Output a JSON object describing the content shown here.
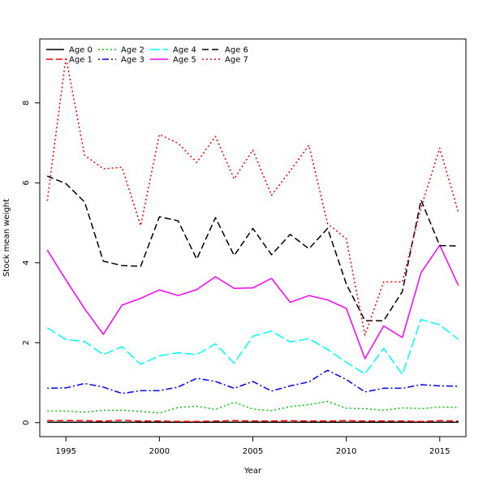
{
  "chart_data": {
    "type": "line",
    "title": "",
    "xlabel": "Year",
    "ylabel": "Stock mean weight",
    "xlim": [
      1993.6,
      2016.4
    ],
    "ylim": [
      -0.35,
      9.6
    ],
    "xticks": [
      1995,
      2000,
      2005,
      2010,
      2015
    ],
    "yticks": [
      0,
      2,
      4,
      6,
      8
    ],
    "legend_position": "top-left",
    "x": [
      1994,
      1995,
      1996,
      1997,
      1998,
      1999,
      2000,
      2001,
      2002,
      2003,
      2004,
      2005,
      2006,
      2007,
      2008,
      2009,
      2010,
      2011,
      2012,
      2013,
      2014,
      2015,
      2016
    ],
    "series": [
      {
        "name": "Age 0",
        "color": "#000000",
        "dash": "solid",
        "values": [
          0.01,
          0.01,
          0.01,
          0.01,
          0.01,
          0.01,
          0.01,
          0.01,
          0.01,
          0.01,
          0.01,
          0.01,
          0.01,
          0.01,
          0.01,
          0.01,
          0.01,
          0.01,
          0.01,
          0.01,
          0.01,
          0.01,
          0.01
        ]
      },
      {
        "name": "Age 1",
        "color": "#ff0000",
        "dash": "dashed",
        "values": [
          0.05,
          0.05,
          0.05,
          0.04,
          0.06,
          0.04,
          0.04,
          0.03,
          0.03,
          0.04,
          0.05,
          0.04,
          0.04,
          0.05,
          0.04,
          0.04,
          0.05,
          0.04,
          0.04,
          0.04,
          0.03,
          0.05,
          0.04
        ]
      },
      {
        "name": "Age 2",
        "color": "#00cd00",
        "dash": "dotted",
        "values": [
          0.29,
          0.29,
          0.26,
          0.31,
          0.31,
          0.28,
          0.24,
          0.38,
          0.41,
          0.33,
          0.51,
          0.34,
          0.3,
          0.4,
          0.45,
          0.53,
          0.36,
          0.35,
          0.31,
          0.37,
          0.35,
          0.39,
          0.38
        ]
      },
      {
        "name": "Age 3",
        "color": "#0000ff",
        "dash": "dotdash",
        "values": [
          0.86,
          0.87,
          0.98,
          0.89,
          0.73,
          0.8,
          0.8,
          0.89,
          1.11,
          1.03,
          0.86,
          1.03,
          0.79,
          0.92,
          1.02,
          1.31,
          1.08,
          0.77,
          0.86,
          0.86,
          0.95,
          0.92,
          0.91
        ]
      },
      {
        "name": "Age 4",
        "color": "#00ffff",
        "dash": "longdash",
        "values": [
          2.37,
          2.08,
          2.03,
          1.7,
          1.9,
          1.46,
          1.67,
          1.75,
          1.7,
          1.97,
          1.49,
          2.16,
          2.29,
          2.02,
          2.1,
          1.83,
          1.51,
          1.22,
          1.86,
          1.21,
          2.58,
          2.45,
          2.08
        ]
      },
      {
        "name": "Age 5",
        "color": "#ff00ff",
        "dash": "solid",
        "values": [
          4.32,
          3.57,
          2.85,
          2.21,
          2.94,
          3.11,
          3.32,
          3.18,
          3.33,
          3.65,
          3.36,
          3.37,
          3.61,
          3.01,
          3.18,
          3.07,
          2.86,
          1.6,
          2.42,
          2.13,
          3.75,
          4.44,
          3.43
        ]
      },
      {
        "name": "Age 6",
        "color": "#000000",
        "dash": "dashed",
        "values": [
          6.17,
          5.98,
          5.52,
          4.04,
          3.93,
          3.91,
          5.15,
          5.05,
          4.09,
          5.13,
          4.18,
          4.86,
          4.2,
          4.71,
          4.35,
          4.86,
          3.47,
          2.55,
          2.55,
          3.28,
          5.57,
          4.43,
          4.42
        ]
      },
      {
        "name": "Age 7",
        "color": "#ff0000",
        "dash": "dotted",
        "values": [
          5.55,
          9.14,
          6.69,
          6.35,
          6.39,
          4.93,
          7.21,
          6.99,
          6.51,
          7.16,
          6.1,
          6.82,
          5.69,
          6.3,
          6.94,
          4.98,
          4.6,
          2.19,
          3.52,
          3.52,
          5.38,
          6.87,
          5.26
        ]
      }
    ]
  }
}
